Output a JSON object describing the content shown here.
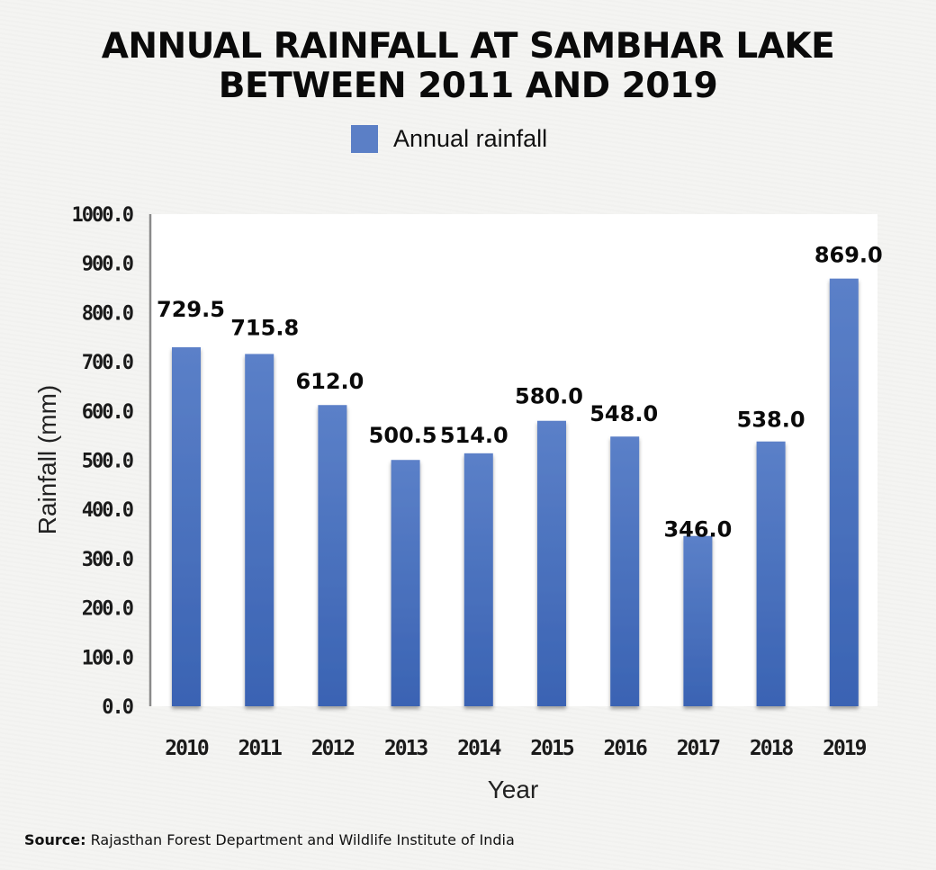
{
  "chart_data": {
    "type": "bar",
    "title": "ANNUAL RAINFALL AT SAMBHAR LAKE BETWEEN 2011 AND 2019",
    "title_lines": [
      "ANNUAL RAINFALL AT SAMBHAR LAKE",
      "BETWEEN 2011 AND 2019"
    ],
    "legend": {
      "entries": [
        "Annual rainfall"
      ],
      "placement": "top-center"
    },
    "categories": [
      "2010",
      "2011",
      "2012",
      "2013",
      "2014",
      "2015",
      "2016",
      "2017",
      "2018",
      "2019"
    ],
    "series": [
      {
        "name": "Annual rainfall",
        "color": "#4a70bf",
        "values": [
          729.5,
          715.8,
          612.0,
          500.5,
          514.0,
          580.0,
          548.0,
          346.0,
          538.0,
          869.0
        ],
        "data_labels": [
          "729.5",
          "715.8",
          "612.0",
          "500.5",
          "514.0",
          "580.0",
          "548.0",
          "346.0",
          "538.0",
          "869.0"
        ]
      }
    ],
    "xlabel": "Year",
    "ylabel": "Rainfall (mm)",
    "ylim": [
      0,
      1000
    ],
    "yticks": [
      0,
      100,
      200,
      300,
      400,
      500,
      600,
      700,
      800,
      900,
      1000
    ],
    "ytick_labels": [
      "0.0",
      "100.0",
      "200.0",
      "300.0",
      "400.0",
      "500.0",
      "600.0",
      "700.0",
      "800.0",
      "900.0",
      "1000.0"
    ],
    "grid": "horizontal"
  },
  "source": {
    "label": "Source:",
    "text": "Rajasthan Forest Department and Wildlife Institute of India"
  }
}
